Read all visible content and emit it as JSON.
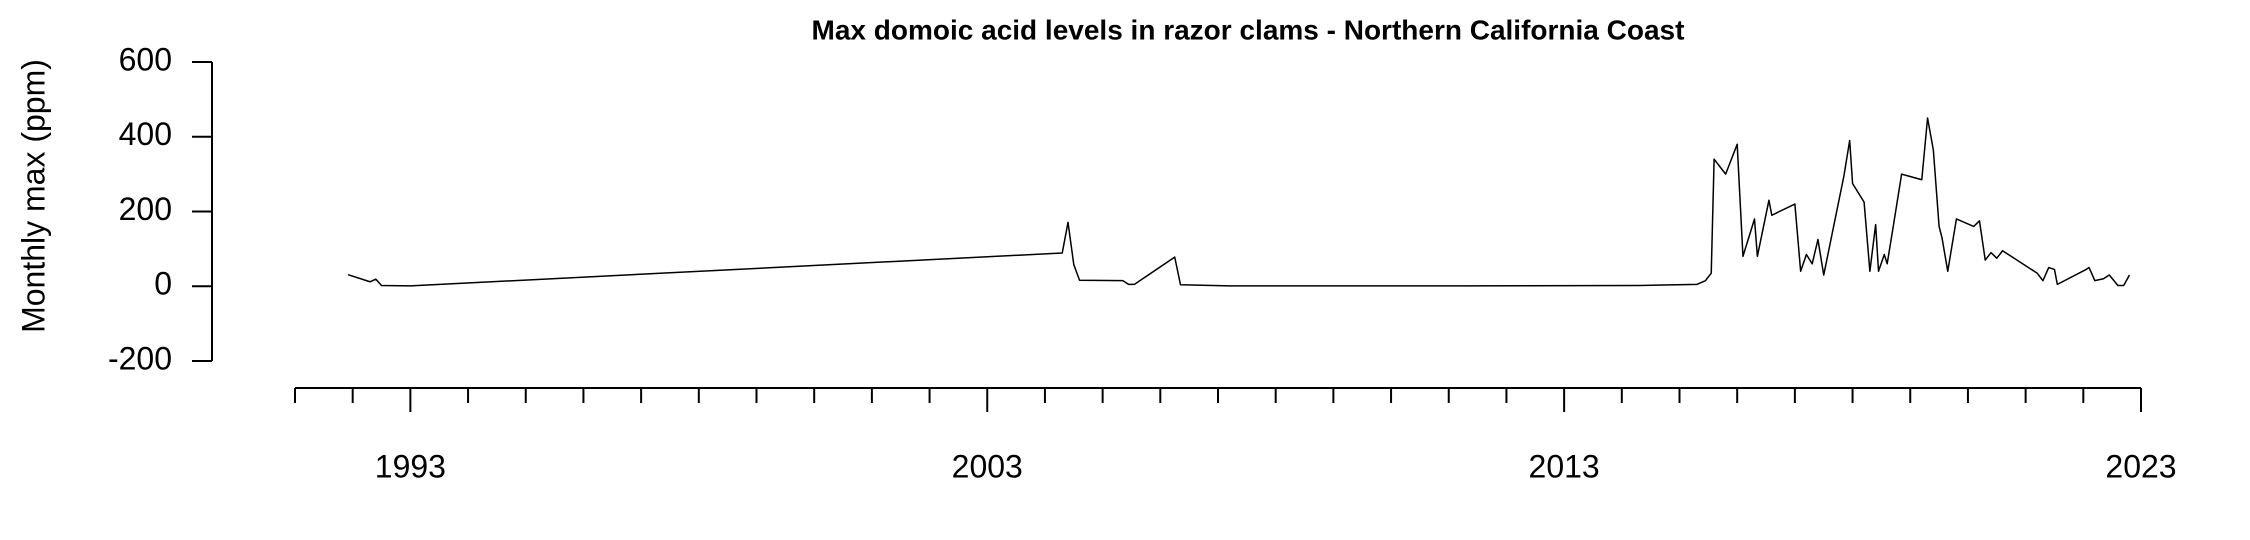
{
  "chart_data": {
    "type": "line",
    "title": "Max domoic acid levels in razor clams - Northern California Coast",
    "y_label": "Monthly max (ppm)",
    "color": "#000000",
    "x": [
      1991.92,
      1992.3,
      1992.4,
      1992.5,
      1993.0,
      2004.3,
      2004.4,
      2004.5,
      2004.6,
      2005.35,
      2005.45,
      2005.55,
      2006.25,
      2006.35,
      2007.2,
      2011.3,
      2014.3,
      2015.3,
      2015.45,
      2015.55,
      2015.6,
      2015.8,
      2016.0,
      2016.1,
      2016.3,
      2016.35,
      2016.55,
      2016.6,
      2017.0,
      2017.1,
      2017.2,
      2017.3,
      2017.4,
      2017.5,
      2017.85,
      2017.95,
      2018.0,
      2018.2,
      2018.3,
      2018.4,
      2018.45,
      2018.55,
      2018.6,
      2018.7,
      2018.85,
      2019.2,
      2019.3,
      2019.4,
      2019.5,
      2019.55,
      2019.65,
      2019.8,
      2020.1,
      2020.2,
      2020.3,
      2020.4,
      2020.5,
      2020.6,
      2021.2,
      2021.3,
      2021.4,
      2021.5,
      2021.55,
      2022.05,
      2022.1,
      2022.2,
      2022.35,
      2022.45,
      2022.6,
      2022.7,
      2022.8
    ],
    "values": [
      31,
      12,
      19,
      2,
      1,
      89,
      171,
      58,
      16,
      15,
      5,
      5,
      78,
      4,
      1,
      1,
      2,
      5,
      15,
      35,
      340,
      300,
      380,
      80,
      180,
      80,
      230,
      190,
      220,
      40,
      85,
      60,
      125,
      30,
      295,
      390,
      275,
      225,
      40,
      165,
      40,
      85,
      60,
      155,
      300,
      285,
      450,
      365,
      160,
      130,
      40,
      180,
      160,
      175,
      70,
      90,
      75,
      95,
      35,
      15,
      50,
      45,
      5,
      45,
      50,
      15,
      20,
      30,
      2,
      2,
      30
    ],
    "xlim": [
      1991,
      2023
    ],
    "xticks": [
      1993,
      2003,
      2013,
      2023
    ],
    "minor_xticks": [
      1991,
      1992,
      1994,
      1995,
      1996,
      1997,
      1998,
      1999,
      2000,
      2001,
      2002,
      2004,
      2005,
      2006,
      2007,
      2008,
      2009,
      2010,
      2011,
      2012,
      2014,
      2015,
      2016,
      2017,
      2018,
      2019,
      2020,
      2021,
      2022
    ],
    "ylim": [
      -200,
      600
    ],
    "yticks": [
      -200,
      0,
      200,
      400,
      600
    ]
  }
}
